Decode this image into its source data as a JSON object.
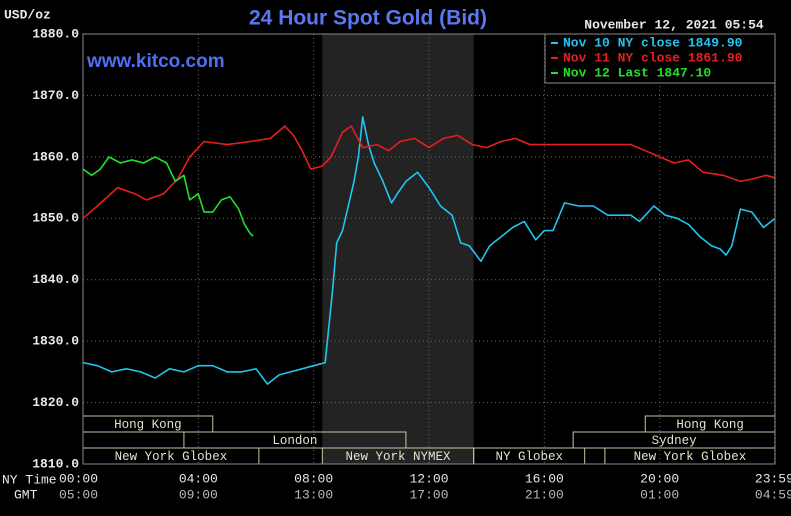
{
  "chart_data": {
    "type": "line",
    "title": "24 Hour Spot Gold (Bid)",
    "y_label": "USD/oz",
    "timestamp": "November 12, 2021 05:54",
    "watermark": "www.kitco.com",
    "x_label": "NY Time",
    "x2_label": "GMT",
    "xlim": [
      0,
      24
    ],
    "ylim": [
      1810,
      1880
    ],
    "yticks": [
      {
        "value": 1880,
        "label": "1880.0"
      },
      {
        "value": 1870,
        "label": "1870.0"
      },
      {
        "value": 1860,
        "label": "1860.0"
      },
      {
        "value": 1850,
        "label": "1850.0"
      },
      {
        "value": 1840,
        "label": "1840.0"
      },
      {
        "value": 1830,
        "label": "1830.0"
      },
      {
        "value": 1820,
        "label": "1820.0"
      },
      {
        "value": 1810,
        "label": "1810.0"
      }
    ],
    "xticks": [
      {
        "value": 0,
        "label": "00:00"
      },
      {
        "value": 4,
        "label": "04:00"
      },
      {
        "value": 8,
        "label": "08:00"
      },
      {
        "value": 12,
        "label": "12:00"
      },
      {
        "value": 16,
        "label": "16:00"
      },
      {
        "value": 20,
        "label": "20:00"
      },
      {
        "value": 23.98,
        "label": "23:59"
      }
    ],
    "x2ticks": [
      "05:00",
      "09:00",
      "13:00",
      "17:00",
      "21:00",
      "01:00",
      "04:59"
    ],
    "grid": true,
    "shaded_range": [
      8.3,
      13.55
    ],
    "sessions": [
      {
        "name": "Hong Kong",
        "start": 0,
        "end": 4.5,
        "row": 0
      },
      {
        "name": "Hong Kong",
        "start": 19.5,
        "end": 24,
        "row": 0
      },
      {
        "name": "London",
        "start": 3.5,
        "end": 11.2,
        "row": 1
      },
      {
        "name": "Sydney",
        "start": 17,
        "end": 24,
        "row": 1
      },
      {
        "name": "New York Globex",
        "start": 0,
        "end": 6.1,
        "row": 2
      },
      {
        "name": "New York NYMEX",
        "start": 8.3,
        "end": 13.55,
        "row": 2
      },
      {
        "name": "NY Globex",
        "start": 13.55,
        "end": 17.4,
        "row": 2
      },
      {
        "name": "New York Globex",
        "start": 18.1,
        "end": 24,
        "row": 2
      }
    ],
    "series": [
      {
        "name": "Nov 10 NY close 1849.90",
        "color": "#22c4f0",
        "x": [
          0,
          0.5,
          1,
          1.5,
          2,
          2.5,
          3,
          3.5,
          4,
          4.5,
          5,
          5.5,
          6,
          6.4,
          6.8,
          7.2,
          7.6,
          8,
          8.4,
          8.65,
          8.8,
          9.0,
          9.2,
          9.4,
          9.55,
          9.7,
          9.9,
          10.1,
          10.4,
          10.7,
          10.9,
          11.2,
          11.6,
          12.0,
          12.4,
          12.8,
          13.1,
          13.4,
          13.8,
          14.1,
          14.5,
          14.9,
          15.3,
          15.7,
          16.0,
          16.3,
          16.7,
          17.2,
          17.7,
          18.2,
          18.6,
          19.0,
          19.3,
          19.8,
          20.2,
          20.6,
          21.0,
          21.4,
          21.8,
          22.1,
          22.3,
          22.5,
          22.8,
          23.2,
          23.6,
          23.98
        ],
        "values": [
          1826.5,
          1826,
          1825,
          1825.5,
          1825,
          1824,
          1825.5,
          1825,
          1826,
          1826,
          1825,
          1825,
          1825.5,
          1823,
          1824.5,
          1825,
          1825.5,
          1826,
          1826.5,
          1838,
          1846,
          1848,
          1852,
          1856,
          1860,
          1866.5,
          1862,
          1859,
          1856,
          1852.5,
          1854,
          1856,
          1857.5,
          1855,
          1852,
          1850.5,
          1846,
          1845.5,
          1843,
          1845.5,
          1847,
          1848.5,
          1849.5,
          1846.5,
          1848,
          1848,
          1852.5,
          1852,
          1852,
          1850.5,
          1850.5,
          1850.5,
          1849.5,
          1852,
          1850.5,
          1850,
          1849,
          1847,
          1845.5,
          1845,
          1844,
          1845.5,
          1851.5,
          1851,
          1848.5,
          1849.9
        ]
      },
      {
        "name": "Nov 11 NY close 1861.90",
        "color": "#e81e1e",
        "x": [
          0,
          0.5,
          1.2,
          1.8,
          2.2,
          2.8,
          3.3,
          3.7,
          4.2,
          5,
          5.8,
          6.5,
          7.0,
          7.3,
          7.6,
          7.9,
          8.3,
          8.6,
          9.0,
          9.3,
          9.7,
          10.2,
          10.6,
          11,
          11.5,
          12,
          12.5,
          13,
          13.5,
          14,
          14.5,
          15,
          15.5,
          16.5,
          17.5,
          18.5,
          19.0,
          19.5,
          20,
          20.5,
          21,
          21.5,
          22.2,
          22.8,
          23.3,
          23.7,
          23.98
        ],
        "values": [
          1850,
          1852,
          1855,
          1854,
          1853,
          1854,
          1856.5,
          1860,
          1862.5,
          1862,
          1862.5,
          1863,
          1865,
          1863.5,
          1861,
          1858,
          1858.5,
          1860,
          1864,
          1865,
          1861.5,
          1862,
          1861,
          1862.5,
          1863,
          1861.5,
          1863,
          1863.5,
          1862,
          1861.5,
          1862.5,
          1863,
          1862,
          1862,
          1862,
          1862,
          1862,
          1861,
          1860,
          1859,
          1859.5,
          1857.5,
          1857,
          1856,
          1856.5,
          1857,
          1856.6
        ]
      },
      {
        "name": "Nov 12 Last 1847.10",
        "color": "#22e02a",
        "x": [
          0,
          0.3,
          0.6,
          0.9,
          1.3,
          1.7,
          2.1,
          2.5,
          2.9,
          3.2,
          3.5,
          3.7,
          4.0,
          4.2,
          4.5,
          4.8,
          5.1,
          5.4,
          5.6,
          5.8,
          5.9
        ],
        "values": [
          1858,
          1857,
          1858,
          1860,
          1859,
          1859.5,
          1859,
          1860,
          1859,
          1856,
          1857,
          1853,
          1854,
          1851,
          1851,
          1853,
          1853.5,
          1851.5,
          1849,
          1847.5,
          1847.1
        ]
      }
    ]
  }
}
